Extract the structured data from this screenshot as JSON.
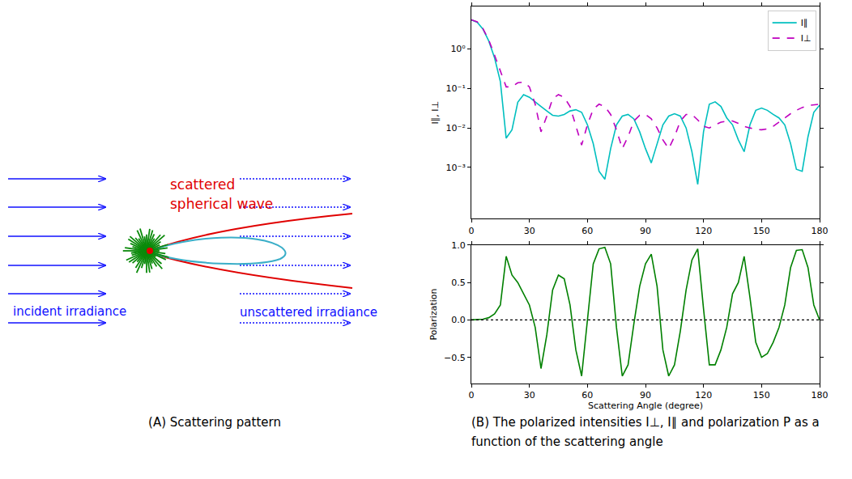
{
  "diagram": {
    "scattered_wave": [
      "scattered",
      "spherical wave"
    ],
    "incident": "incident irradiance",
    "unscattered": "unscattered irradiance"
  },
  "captions": [
    "(A) Scattering pattern",
    "(B) The polarized intensities I⊥, I∥ and polarization P as a function of the scattering angle"
  ],
  "chart_data": [
    {
      "type": "line",
      "ylabel": "I∥, I⊥",
      "log": "y",
      "legend": "upper right",
      "xlim": [
        0,
        180
      ],
      "xticks": [
        0,
        30,
        60,
        90,
        120,
        150,
        180
      ],
      "ylim": [
        5e-05,
        12
      ],
      "yticks": [
        {
          "value": 0.001,
          "label": "10⁻³"
        },
        {
          "value": 0.01,
          "label": "10⁻²"
        },
        {
          "value": 0.1,
          "label": "10⁻¹"
        },
        {
          "value": 1,
          "label": "10⁰"
        }
      ],
      "x": [
        0,
        3,
        6,
        9,
        12,
        15,
        18,
        21,
        24,
        27,
        30,
        33,
        36,
        39,
        42,
        45,
        48,
        51,
        54,
        57,
        60,
        63,
        66,
        69,
        72,
        75,
        78,
        81,
        84,
        87,
        90,
        93,
        96,
        99,
        102,
        105,
        108,
        111,
        114,
        117,
        120,
        123,
        126,
        129,
        132,
        135,
        138,
        141,
        144,
        147,
        150,
        153,
        156,
        159,
        162,
        165,
        168,
        171,
        174,
        177,
        180
      ],
      "series": [
        {
          "name": "I∥",
          "color": "#00bfbf",
          "line_style": "solid",
          "values": [
            5.5,
            4.8,
            3.2,
            1.6,
            0.6,
            0.15,
            0.0055,
            0.009,
            0.045,
            0.07,
            0.06,
            0.045,
            0.035,
            0.027,
            0.021,
            0.02,
            0.022,
            0.027,
            0.029,
            0.025,
            0.012,
            0.004,
            0.0008,
            0.0005,
            0.003,
            0.012,
            0.02,
            0.022,
            0.017,
            0.008,
            0.003,
            0.0013,
            0.004,
            0.012,
            0.02,
            0.023,
            0.02,
            0.01,
            0.0025,
            0.00037,
            0.008,
            0.04,
            0.046,
            0.035,
            0.018,
            0.012,
            0.005,
            0.0025,
            0.012,
            0.028,
            0.032,
            0.028,
            0.022,
            0.018,
            0.012,
            0.004,
            0.0009,
            0.0008,
            0.006,
            0.025,
            0.038
          ]
        },
        {
          "name": "I⊥",
          "color": "#bf00bf",
          "line_style": "dashed",
          "values": [
            5.5,
            4.9,
            3.3,
            1.7,
            0.7,
            0.28,
            0.11,
            0.11,
            0.14,
            0.145,
            0.11,
            0.04,
            0.008,
            0.02,
            0.055,
            0.07,
            0.06,
            0.035,
            0.012,
            0.0037,
            0.012,
            0.03,
            0.04,
            0.035,
            0.022,
            0.009,
            0.003,
            0.006,
            0.015,
            0.021,
            0.022,
            0.017,
            0.01,
            0.005,
            0.003,
            0.006,
            0.015,
            0.022,
            0.022,
            0.016,
            0.011,
            0.01,
            0.012,
            0.014,
            0.015,
            0.015,
            0.013,
            0.011,
            0.01,
            0.0092,
            0.009,
            0.0095,
            0.011,
            0.014,
            0.018,
            0.023,
            0.028,
            0.033,
            0.037,
            0.039,
            0.04
          ]
        }
      ]
    },
    {
      "type": "line",
      "xlabel": "Scattering Angle (degree)",
      "ylabel": "Polarization",
      "xlim": [
        0,
        180
      ],
      "xticks": [
        0,
        30,
        60,
        90,
        120,
        150,
        180
      ],
      "ylim": [
        -0.85,
        1.0
      ],
      "yticks": [
        {
          "value": -0.5,
          "label": "−0.5"
        },
        {
          "value": 0,
          "label": "0.0"
        },
        {
          "value": 0.5,
          "label": "0.5"
        },
        {
          "value": 1.0,
          "label": "1.0"
        }
      ],
      "reference_line": {
        "value": 0,
        "color": "#000000",
        "line_style": "dotted"
      },
      "x": [
        0,
        3,
        6,
        9,
        12,
        15,
        18,
        21,
        24,
        27,
        30,
        33,
        36,
        39,
        42,
        45,
        48,
        51,
        54,
        57,
        60,
        63,
        66,
        69,
        72,
        75,
        78,
        81,
        84,
        87,
        90,
        93,
        96,
        99,
        102,
        105,
        108,
        111,
        114,
        117,
        120,
        123,
        126,
        129,
        132,
        135,
        138,
        141,
        144,
        147,
        150,
        153,
        156,
        159,
        162,
        165,
        168,
        171,
        174,
        177,
        180
      ],
      "series": [
        {
          "color": "#008000",
          "line_style": "solid",
          "values": [
            0,
            0.005,
            0.01,
            0.03,
            0.08,
            0.2,
            0.85,
            0.6,
            0.5,
            0.35,
            0.2,
            -0.1,
            -0.65,
            -0.2,
            0.4,
            0.6,
            0.55,
            0.2,
            -0.4,
            -0.75,
            0.0,
            0.75,
            0.95,
            0.97,
            0.75,
            -0.1,
            -0.75,
            -0.6,
            -0.05,
            0.45,
            0.75,
            0.88,
            0.45,
            -0.4,
            -0.75,
            -0.6,
            -0.15,
            0.4,
            0.8,
            0.95,
            0.15,
            -0.6,
            -0.6,
            -0.4,
            -0.1,
            0.35,
            0.5,
            0.85,
            0.3,
            -0.3,
            -0.5,
            -0.45,
            -0.3,
            -0.1,
            0.2,
            0.7,
            0.93,
            0.94,
            0.7,
            0.2,
            0.0
          ]
        }
      ]
    }
  ]
}
